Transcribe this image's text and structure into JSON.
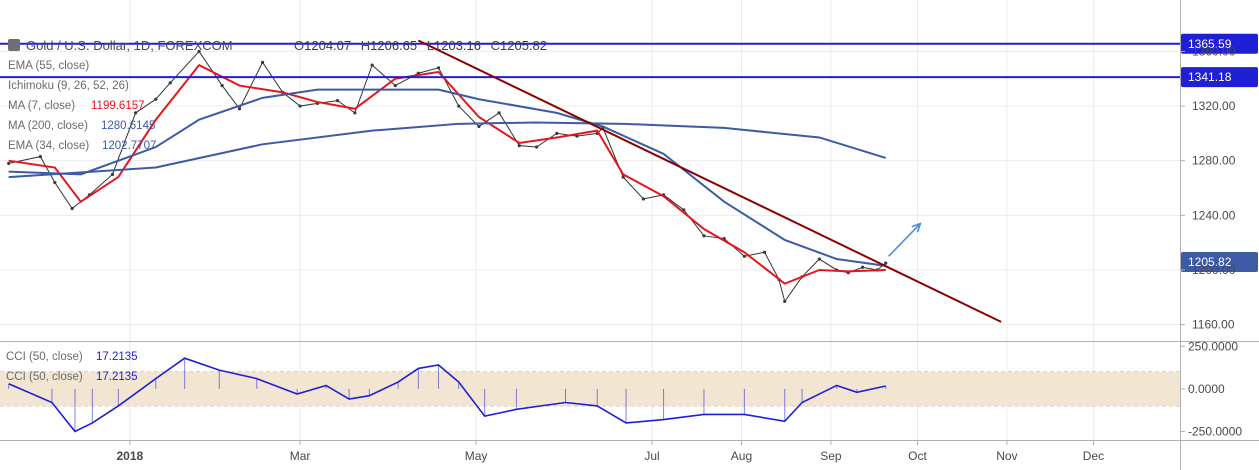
{
  "chart_data": [
    {
      "type": "line",
      "panel": "price",
      "title": "Gold / U.S. Dollar, 1D, FOREXCOM",
      "ohlc": {
        "open_label": "O",
        "open": "1204.07",
        "high_label": "H",
        "high": "1206.65",
        "low_label": "L",
        "low": "1203.16",
        "close_label": "C",
        "close": "1205.82"
      },
      "indicators": [
        {
          "name": "EMA (55, close)",
          "value": "",
          "color": "#3c5aa6"
        },
        {
          "name": "Ichimoku (9, 26, 52, 26)",
          "value": "",
          "color": "#3c5aa6"
        },
        {
          "name": "MA (7, close)",
          "value": "1199.6157",
          "color": "#e5171c"
        },
        {
          "name": "MA (200, close)",
          "value": "1280.6145",
          "color": "#3c5aa6"
        },
        {
          "name": "EMA (34, close)",
          "value": "1202.7707",
          "color": "#3c5aa6"
        }
      ],
      "y_ticks": [
        1160,
        1200,
        1240,
        1280,
        1320,
        1360
      ],
      "ylim": [
        1148,
        1383
      ],
      "x_ticks": [
        "2018",
        "Mar",
        "May",
        "Jul",
        "Aug",
        "Sep",
        "Oct",
        "Nov",
        "Dec"
      ],
      "x_tick_dates": [
        "2018-01-01",
        "2018-03-01",
        "2018-05-01",
        "2018-07-01",
        "2018-08-01",
        "2018-09-01",
        "2018-10-01",
        "2018-11-01",
        "2018-12-01"
      ],
      "xlim": [
        "2017-11-17",
        "2018-12-31"
      ],
      "horizontal_levels": [
        {
          "value": 1365.59,
          "label": "1365.59",
          "color": "#1f1fd6"
        },
        {
          "value": 1341.18,
          "label": "1341.18",
          "color": "#1f1fd6"
        }
      ],
      "last_price_label": "1205.82",
      "trendline": {
        "color": "#8b0000",
        "from": {
          "date": "2018-04-11",
          "value": 1368
        },
        "to": {
          "date": "2018-10-30",
          "value": 1162
        }
      },
      "arrow": {
        "color": "#4a90d9",
        "from": {
          "date": "2018-09-21",
          "value": 1210
        },
        "to": {
          "date": "2018-10-02",
          "value": 1234
        }
      },
      "series": [
        {
          "name": "Price",
          "color": "#333333",
          "x": [
            "2017-11-20",
            "2017-12-01",
            "2017-12-06",
            "2017-12-12",
            "2017-12-18",
            "2017-12-26",
            "2018-01-03",
            "2018-01-10",
            "2018-01-15",
            "2018-01-25",
            "2018-02-02",
            "2018-02-08",
            "2018-02-16",
            "2018-02-23",
            "2018-03-01",
            "2018-03-07",
            "2018-03-14",
            "2018-03-20",
            "2018-03-26",
            "2018-04-03",
            "2018-04-11",
            "2018-04-18",
            "2018-04-25",
            "2018-05-02",
            "2018-05-09",
            "2018-05-16",
            "2018-05-22",
            "2018-05-29",
            "2018-06-05",
            "2018-06-12",
            "2018-06-14",
            "2018-06-21",
            "2018-06-28",
            "2018-07-05",
            "2018-07-12",
            "2018-07-19",
            "2018-07-26",
            "2018-08-02",
            "2018-08-09",
            "2018-08-14",
            "2018-08-16",
            "2018-08-22",
            "2018-08-28",
            "2018-09-03",
            "2018-09-07",
            "2018-09-12",
            "2018-09-17",
            "2018-09-20"
          ],
          "values": [
            1278,
            1283,
            1264,
            1245,
            1255,
            1270,
            1315,
            1325,
            1337,
            1360,
            1335,
            1318,
            1352,
            1330,
            1320,
            1322,
            1324,
            1315,
            1350,
            1335,
            1344,
            1348,
            1320,
            1305,
            1315,
            1291,
            1290,
            1300,
            1298,
            1300,
            1304,
            1268,
            1252,
            1255,
            1244,
            1225,
            1223,
            1210,
            1213,
            1193,
            1177,
            1195,
            1208,
            1200,
            1198,
            1202,
            1200,
            1205
          ]
        },
        {
          "name": "MA (7, close)",
          "color": "#e5171c",
          "x": [
            "2017-11-20",
            "2017-12-06",
            "2017-12-15",
            "2017-12-28",
            "2018-01-10",
            "2018-01-25",
            "2018-02-08",
            "2018-02-23",
            "2018-03-07",
            "2018-03-20",
            "2018-04-03",
            "2018-04-18",
            "2018-05-02",
            "2018-05-16",
            "2018-05-29",
            "2018-06-12",
            "2018-06-21",
            "2018-07-05",
            "2018-07-19",
            "2018-08-02",
            "2018-08-16",
            "2018-08-28",
            "2018-09-07",
            "2018-09-20"
          ],
          "values": [
            1280,
            1275,
            1250,
            1268,
            1310,
            1350,
            1335,
            1330,
            1323,
            1318,
            1340,
            1345,
            1312,
            1293,
            1297,
            1302,
            1270,
            1254,
            1230,
            1213,
            1190,
            1200,
            1199,
            1200
          ]
        },
        {
          "name": "EMA (34, close)",
          "color": "#3c5aa6",
          "x": [
            "2017-11-20",
            "2017-12-15",
            "2018-01-10",
            "2018-01-25",
            "2018-02-16",
            "2018-03-07",
            "2018-03-26",
            "2018-04-18",
            "2018-05-02",
            "2018-05-29",
            "2018-06-14",
            "2018-07-05",
            "2018-07-26",
            "2018-08-16",
            "2018-09-03",
            "2018-09-20"
          ],
          "values": [
            1272,
            1270,
            1290,
            1310,
            1326,
            1332,
            1332,
            1332,
            1325,
            1315,
            1305,
            1285,
            1250,
            1222,
            1208,
            1203
          ]
        },
        {
          "name": "MA (200, close)",
          "color": "#3c5aa6",
          "x": [
            "2017-11-20",
            "2018-01-10",
            "2018-02-16",
            "2018-03-26",
            "2018-04-25",
            "2018-05-22",
            "2018-06-21",
            "2018-07-26",
            "2018-08-28",
            "2018-09-20"
          ],
          "values": [
            1268,
            1275,
            1292,
            1302,
            1307,
            1308,
            1307,
            1304,
            1297,
            1282
          ]
        }
      ]
    },
    {
      "type": "line",
      "panel": "cci",
      "indicators": [
        {
          "name": "CCI (50, close)",
          "value": "17.2135",
          "color": "#1f1fd6"
        },
        {
          "name": "CCI (50, close)",
          "value": "17.2135",
          "color": "#1f1fd6"
        }
      ],
      "y_ticks": [
        -250,
        0,
        250
      ],
      "y_tick_labels": [
        "-250.0000",
        "0.0000",
        "250.0000"
      ],
      "ylim": [
        -300,
        275
      ],
      "band": [
        -100,
        100
      ],
      "series": [
        {
          "name": "CCI (50, close)",
          "color": "#1f1fd6",
          "x": [
            "2017-11-20",
            "2017-12-05",
            "2017-12-13",
            "2017-12-19",
            "2017-12-28",
            "2018-01-10",
            "2018-01-20",
            "2018-02-01",
            "2018-02-14",
            "2018-02-28",
            "2018-03-10",
            "2018-03-18",
            "2018-03-25",
            "2018-04-04",
            "2018-04-11",
            "2018-04-18",
            "2018-04-25",
            "2018-05-04",
            "2018-05-15",
            "2018-06-01",
            "2018-06-12",
            "2018-06-22",
            "2018-07-05",
            "2018-07-19",
            "2018-08-02",
            "2018-08-16",
            "2018-08-22",
            "2018-09-03",
            "2018-09-10",
            "2018-09-20"
          ],
          "values": [
            30,
            -80,
            -250,
            -200,
            -100,
            60,
            180,
            110,
            60,
            -30,
            20,
            -60,
            -40,
            40,
            120,
            140,
            40,
            -160,
            -120,
            -80,
            -100,
            -200,
            -180,
            -150,
            -150,
            -190,
            -80,
            20,
            -20,
            17
          ]
        }
      ]
    }
  ]
}
